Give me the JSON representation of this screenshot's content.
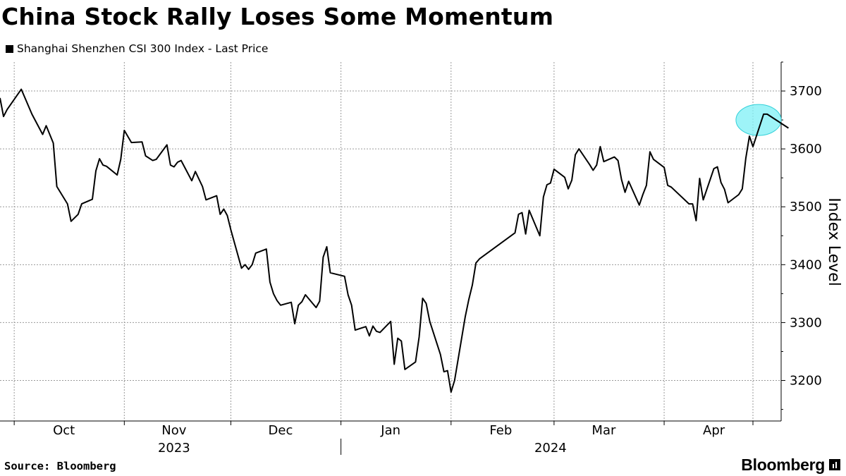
{
  "title": "China Stock Rally Loses Some Momentum",
  "legend": {
    "label": "Shanghai Shenzhen CSI 300 Index - Last Price",
    "color": "#000000"
  },
  "source": "Source: Bloomberg",
  "brand": "Bloomberg",
  "chart_data": {
    "type": "line",
    "title": "China Stock Rally Loses Some Momentum",
    "ylabel": "Index Level",
    "ylim": [
      3130,
      3750
    ],
    "y_ticks": [
      3200,
      3300,
      3400,
      3500,
      3600,
      3700
    ],
    "x_range": [
      "2023-09-27",
      "2024-04-26"
    ],
    "month_labels": [
      {
        "label": "Oct",
        "date": "2023-10-15"
      },
      {
        "label": "Nov",
        "date": "2023-11-15"
      },
      {
        "label": "Dec",
        "date": "2023-12-15"
      },
      {
        "label": "Jan",
        "date": "2024-01-15"
      },
      {
        "label": "Feb",
        "date": "2024-02-15"
      },
      {
        "label": "Mar",
        "date": "2024-03-15"
      },
      {
        "label": "Apr",
        "date": "2024-04-15"
      }
    ],
    "month_boundaries": [
      "2023-10-01",
      "2023-11-01",
      "2023-12-01",
      "2024-01-01",
      "2024-02-01",
      "2024-03-01",
      "2024-04-01",
      "2024-04-26"
    ],
    "year_labels": [
      {
        "label": "2023",
        "date": "2023-11-15"
      },
      {
        "label": "2024",
        "date": "2024-02-29"
      }
    ],
    "year_divider": "2024-01-01",
    "grid": true,
    "legend_position": "top-left",
    "highlight": {
      "date": "2024-04-24",
      "value": 3650,
      "color": "#7ef0f5"
    },
    "series": [
      {
        "name": "Shanghai Shenzhen CSI 300 Index - Last Price",
        "color": "#000000",
        "points": [
          [
            "2023-09-27",
            3688
          ],
          [
            "2023-09-28",
            3656
          ],
          [
            "2023-09-29",
            3668
          ],
          [
            "2023-10-03",
            3703
          ],
          [
            "2023-10-06",
            3660
          ],
          [
            "2023-10-09",
            3625
          ],
          [
            "2023-10-10",
            3640
          ],
          [
            "2023-10-12",
            3610
          ],
          [
            "2023-10-13",
            3535
          ],
          [
            "2023-10-16",
            3505
          ],
          [
            "2023-10-17",
            3475
          ],
          [
            "2023-10-19",
            3487
          ],
          [
            "2023-10-20",
            3505
          ],
          [
            "2023-10-23",
            3513
          ],
          [
            "2023-10-24",
            3562
          ],
          [
            "2023-10-25",
            3583
          ],
          [
            "2023-10-26",
            3572
          ],
          [
            "2023-10-27",
            3570
          ],
          [
            "2023-10-30",
            3555
          ],
          [
            "2023-10-31",
            3582
          ],
          [
            "2023-11-01",
            3632
          ],
          [
            "2023-11-03",
            3611
          ],
          [
            "2023-11-06",
            3612
          ],
          [
            "2023-11-07",
            3588
          ],
          [
            "2023-11-09",
            3580
          ],
          [
            "2023-11-10",
            3582
          ],
          [
            "2023-11-13",
            3607
          ],
          [
            "2023-11-14",
            3572
          ],
          [
            "2023-11-15",
            3569
          ],
          [
            "2023-11-16",
            3577
          ],
          [
            "2023-11-17",
            3580
          ],
          [
            "2023-11-20",
            3545
          ],
          [
            "2023-11-21",
            3561
          ],
          [
            "2023-11-23",
            3535
          ],
          [
            "2023-11-24",
            3512
          ],
          [
            "2023-11-27",
            3519
          ],
          [
            "2023-11-28",
            3487
          ],
          [
            "2023-11-29",
            3496
          ],
          [
            "2023-11-30",
            3485
          ],
          [
            "2023-12-01",
            3460
          ],
          [
            "2023-12-04",
            3394
          ],
          [
            "2023-12-05",
            3400
          ],
          [
            "2023-12-06",
            3392
          ],
          [
            "2023-12-07",
            3400
          ],
          [
            "2023-12-08",
            3420
          ],
          [
            "2023-12-11",
            3427
          ],
          [
            "2023-12-12",
            3370
          ],
          [
            "2023-12-13",
            3350
          ],
          [
            "2023-12-14",
            3338
          ],
          [
            "2023-12-15",
            3330
          ],
          [
            "2023-12-18",
            3335
          ],
          [
            "2023-12-19",
            3298
          ],
          [
            "2023-12-20",
            3330
          ],
          [
            "2023-12-21",
            3336
          ],
          [
            "2023-12-22",
            3348
          ],
          [
            "2023-12-25",
            3326
          ],
          [
            "2023-12-26",
            3337
          ],
          [
            "2023-12-27",
            3413
          ],
          [
            "2023-12-28",
            3431
          ],
          [
            "2023-12-29",
            3386
          ],
          [
            "2024-01-02",
            3380
          ],
          [
            "2024-01-03",
            3348
          ],
          [
            "2024-01-04",
            3330
          ],
          [
            "2024-01-05",
            3287
          ],
          [
            "2024-01-08",
            3293
          ],
          [
            "2024-01-09",
            3277
          ],
          [
            "2024-01-10",
            3294
          ],
          [
            "2024-01-11",
            3285
          ],
          [
            "2024-01-12",
            3283
          ],
          [
            "2024-01-15",
            3302
          ],
          [
            "2024-01-16",
            3228
          ],
          [
            "2024-01-17",
            3273
          ],
          [
            "2024-01-18",
            3268
          ],
          [
            "2024-01-19",
            3219
          ],
          [
            "2024-01-22",
            3232
          ],
          [
            "2024-01-23",
            3275
          ],
          [
            "2024-01-24",
            3342
          ],
          [
            "2024-01-25",
            3333
          ],
          [
            "2024-01-26",
            3302
          ],
          [
            "2024-01-29",
            3245
          ],
          [
            "2024-01-30",
            3215
          ],
          [
            "2024-01-31",
            3217
          ],
          [
            "2024-02-01",
            3180
          ],
          [
            "2024-02-02",
            3200
          ],
          [
            "2024-02-05",
            3310
          ],
          [
            "2024-02-06",
            3340
          ],
          [
            "2024-02-07",
            3365
          ],
          [
            "2024-02-08",
            3403
          ],
          [
            "2024-02-09",
            3410
          ],
          [
            "2024-02-19",
            3455
          ],
          [
            "2024-02-20",
            3487
          ],
          [
            "2024-02-21",
            3490
          ],
          [
            "2024-02-22",
            3453
          ],
          [
            "2024-02-23",
            3494
          ],
          [
            "2024-02-26",
            3450
          ],
          [
            "2024-02-27",
            3517
          ],
          [
            "2024-02-28",
            3538
          ],
          [
            "2024-02-29",
            3541
          ],
          [
            "2024-03-01",
            3565
          ],
          [
            "2024-03-04",
            3551
          ],
          [
            "2024-03-05",
            3531
          ],
          [
            "2024-03-06",
            3546
          ],
          [
            "2024-03-07",
            3590
          ],
          [
            "2024-03-08",
            3600
          ],
          [
            "2024-03-11",
            3573
          ],
          [
            "2024-03-12",
            3563
          ],
          [
            "2024-03-13",
            3572
          ],
          [
            "2024-03-14",
            3604
          ],
          [
            "2024-03-15",
            3578
          ],
          [
            "2024-03-18",
            3586
          ],
          [
            "2024-03-19",
            3580
          ],
          [
            "2024-03-20",
            3547
          ],
          [
            "2024-03-21",
            3525
          ],
          [
            "2024-03-22",
            3544
          ],
          [
            "2024-03-25",
            3503
          ],
          [
            "2024-03-26",
            3521
          ],
          [
            "2024-03-27",
            3537
          ],
          [
            "2024-03-28",
            3595
          ],
          [
            "2024-03-29",
            3582
          ],
          [
            "2024-04-01",
            3568
          ],
          [
            "2024-04-02",
            3537
          ],
          [
            "2024-04-03",
            3534
          ],
          [
            "2024-04-08",
            3505
          ],
          [
            "2024-04-09",
            3505
          ],
          [
            "2024-04-10",
            3476
          ],
          [
            "2024-04-11",
            3549
          ],
          [
            "2024-04-12",
            3512
          ],
          [
            "2024-04-15",
            3566
          ],
          [
            "2024-04-16",
            3569
          ],
          [
            "2024-04-17",
            3542
          ],
          [
            "2024-04-18",
            3530
          ],
          [
            "2024-04-19",
            3507
          ],
          [
            "2024-04-22",
            3521
          ],
          [
            "2024-04-23",
            3531
          ],
          [
            "2024-04-24",
            3584
          ],
          [
            "2024-04-25",
            3622
          ],
          [
            "2024-04-26",
            3604
          ],
          [
            "2024-04-29",
            3660
          ],
          [
            "2024-04-30",
            3660
          ],
          [
            "2024-05-06",
            3636
          ]
        ]
      }
    ]
  }
}
